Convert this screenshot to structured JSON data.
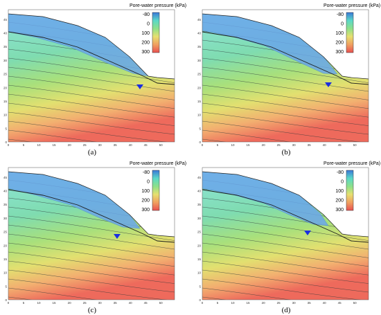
{
  "legend": {
    "title": "Pore-water pressure  (kPa)",
    "values": [
      "-80",
      "0",
      "100",
      "200",
      "300"
    ],
    "colors": [
      "#3a78d8",
      "#5ad8c8",
      "#8de08a",
      "#e6e070",
      "#f0a060",
      "#e85050"
    ]
  },
  "y_ticks": [
    "0",
    "5",
    "10",
    "15",
    "20",
    "25",
    "30",
    "35",
    "40",
    "45"
  ],
  "x_ticks": [
    "0",
    "5",
    "10",
    "15",
    "20",
    "25",
    "30",
    "35",
    "40",
    "45",
    "50",
    "55"
  ],
  "panels": [
    {
      "label": "(a)"
    },
    {
      "label": "(b)"
    },
    {
      "label": "(c)"
    },
    {
      "label": "(d)"
    }
  ],
  "water_table_marker": "inverted-triangle-icon",
  "colors": {
    "saturated_zone": "#6aa6ea",
    "contour_line": "#2e3a3a",
    "slip_line": "#1b1b1b",
    "marker": "#1a2ee0"
  }
}
